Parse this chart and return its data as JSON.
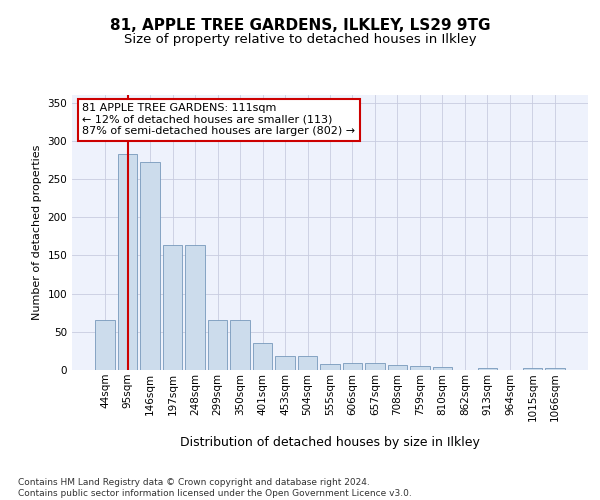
{
  "title1": "81, APPLE TREE GARDENS, ILKLEY, LS29 9TG",
  "title2": "Size of property relative to detached houses in Ilkley",
  "xlabel": "Distribution of detached houses by size in Ilkley",
  "ylabel": "Number of detached properties",
  "categories": [
    "44sqm",
    "95sqm",
    "146sqm",
    "197sqm",
    "248sqm",
    "299sqm",
    "350sqm",
    "401sqm",
    "453sqm",
    "504sqm",
    "555sqm",
    "606sqm",
    "657sqm",
    "708sqm",
    "759sqm",
    "810sqm",
    "862sqm",
    "913sqm",
    "964sqm",
    "1015sqm",
    "1066sqm"
  ],
  "values": [
    65,
    283,
    272,
    163,
    163,
    65,
    65,
    35,
    18,
    18,
    8,
    9,
    9,
    6,
    5,
    4,
    0,
    3,
    0,
    2,
    2
  ],
  "bar_color": "#ccdcec",
  "bar_edge_color": "#7799bb",
  "vline_x": 1,
  "vline_color": "#cc0000",
  "annotation_text": "81 APPLE TREE GARDENS: 111sqm\n← 12% of detached houses are smaller (113)\n87% of semi-detached houses are larger (802) →",
  "annotation_box_color": "white",
  "annotation_box_edge": "#cc0000",
  "ylim": [
    0,
    360
  ],
  "yticks": [
    0,
    50,
    100,
    150,
    200,
    250,
    300,
    350
  ],
  "footer": "Contains HM Land Registry data © Crown copyright and database right 2024.\nContains public sector information licensed under the Open Government Licence v3.0.",
  "bg_color": "#eef2fc",
  "grid_color": "#c8cce0",
  "title1_fontsize": 11,
  "title2_fontsize": 9.5,
  "xlabel_fontsize": 9,
  "ylabel_fontsize": 8,
  "footer_fontsize": 6.5,
  "annotation_fontsize": 8,
  "tick_fontsize": 7.5
}
